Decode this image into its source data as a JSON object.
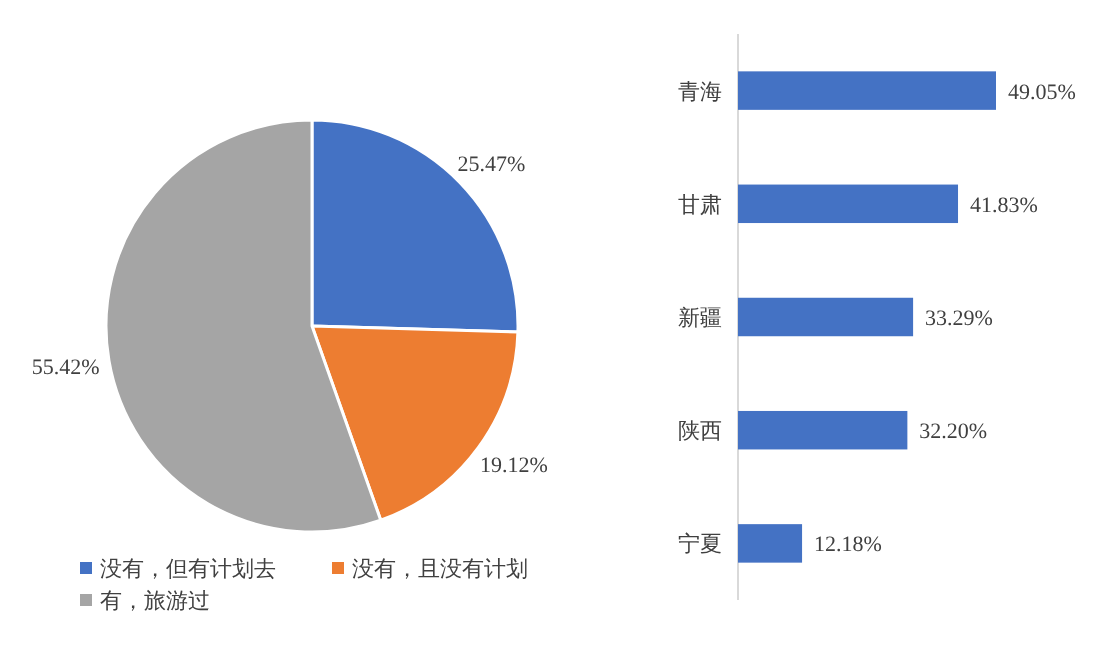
{
  "chart_data": [
    {
      "type": "pie",
      "categories": [
        "没有，但有计划去",
        "没有，且没有计划",
        "有，旅游过"
      ],
      "values": [
        25.47,
        19.12,
        55.42
      ],
      "colors": [
        "#4472c4",
        "#ed7d31",
        "#a5a5a5"
      ],
      "value_labels": [
        "25.47%",
        "19.12%",
        "55.42%"
      ],
      "legend": "bottom"
    },
    {
      "type": "bar",
      "orientation": "horizontal",
      "categories": [
        "青海",
        "甘肃",
        "新疆",
        "陕西",
        "宁夏"
      ],
      "values": [
        49.05,
        41.83,
        33.29,
        32.2,
        12.18
      ],
      "color": "#4472c4",
      "value_labels": [
        "49.05%",
        "41.83%",
        "33.29%",
        "32.20%",
        "12.18%"
      ]
    }
  ]
}
